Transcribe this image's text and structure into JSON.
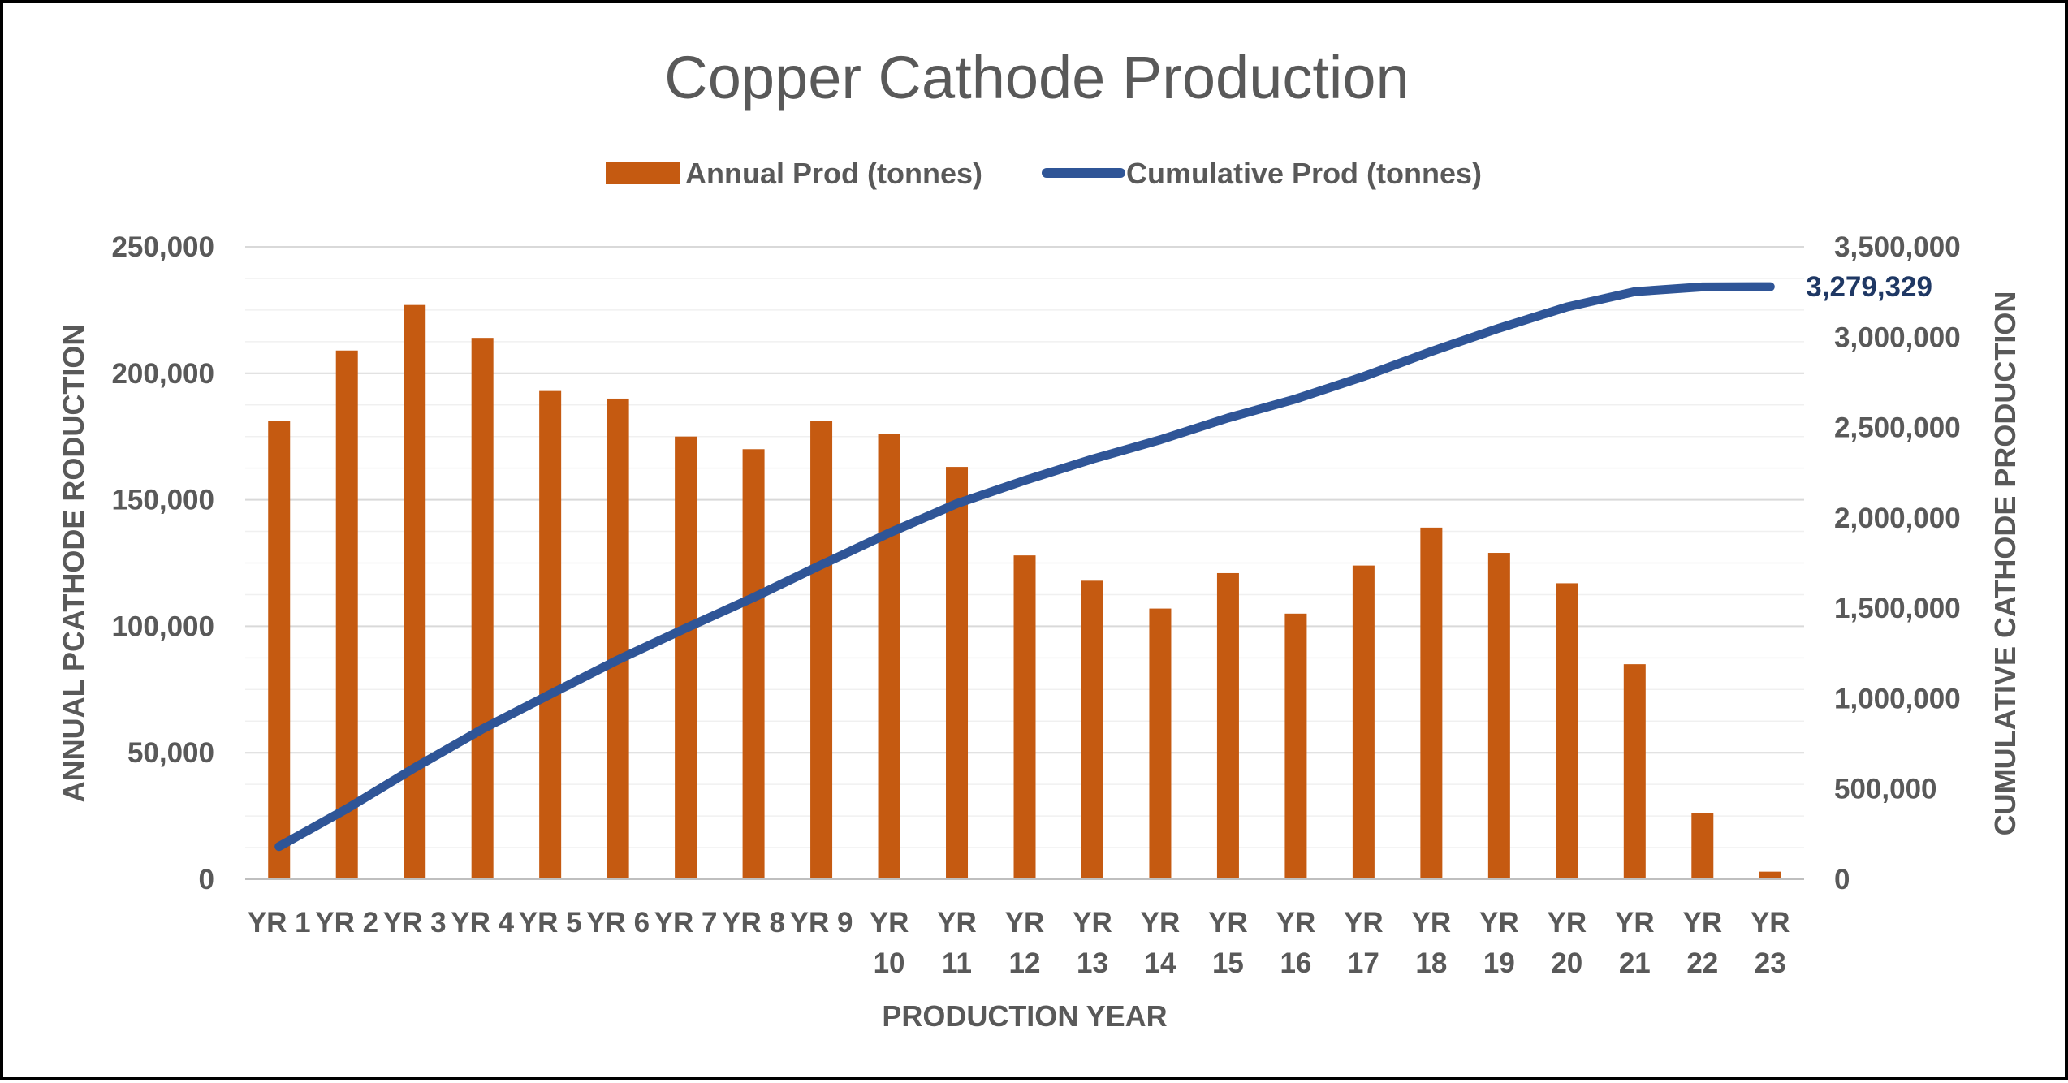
{
  "chart_data": {
    "type": "bar",
    "title": "Copper Cathode Production",
    "xlabel": "PRODUCTION YEAR",
    "ylabel": "ANNUAL PCATHODE RODUCTION",
    "y2label": "CUMULATIVE CATHODE PRODUCTION",
    "categories": [
      "YR 1",
      "YR 2",
      "YR 3",
      "YR 4",
      "YR 5",
      "YR 6",
      "YR 7",
      "YR 8",
      "YR 9",
      "YR 10",
      "YR 11",
      "YR 12",
      "YR 13",
      "YR 14",
      "YR 15",
      "YR 16",
      "YR 17",
      "YR 18",
      "YR 19",
      "YR 20",
      "YR 21",
      "YR 22",
      "YR 23"
    ],
    "ylim": [
      0,
      250000
    ],
    "y2lim": [
      0,
      3500000
    ],
    "yticks": [
      "0",
      "50,000",
      "100,000",
      "150,000",
      "200,000",
      "250,000"
    ],
    "y2ticks": [
      "0",
      "500,000",
      "1,000,000",
      "1,500,000",
      "2,000,000",
      "2,500,000",
      "3,000,000",
      "3,500,000"
    ],
    "grid": true,
    "legend_position": "top",
    "series": [
      {
        "name": "Annual Prod (tonnes)",
        "type": "bar",
        "axis": "left",
        "color": "#c55a11",
        "values": [
          181000,
          209000,
          227000,
          214000,
          193000,
          190000,
          175000,
          170000,
          181000,
          176000,
          163000,
          128000,
          118000,
          107000,
          121000,
          105000,
          124000,
          139000,
          129000,
          117000,
          85000,
          26000,
          3000
        ]
      },
      {
        "name": "Cumulative Prod (tonnes)",
        "type": "line",
        "axis": "right",
        "color": "#2f5597",
        "values": [
          181000,
          390000,
          617000,
          831000,
          1024000,
          1214000,
          1389000,
          1559000,
          1740000,
          1916000,
          2079000,
          2207000,
          2325000,
          2432000,
          2553000,
          2658000,
          2782000,
          2921000,
          3050000,
          3167000,
          3252000,
          3278000,
          3279329
        ]
      }
    ],
    "annotations": [
      {
        "series": "Cumulative Prod (tonnes)",
        "index": 22,
        "text": "3,279,329"
      }
    ]
  }
}
